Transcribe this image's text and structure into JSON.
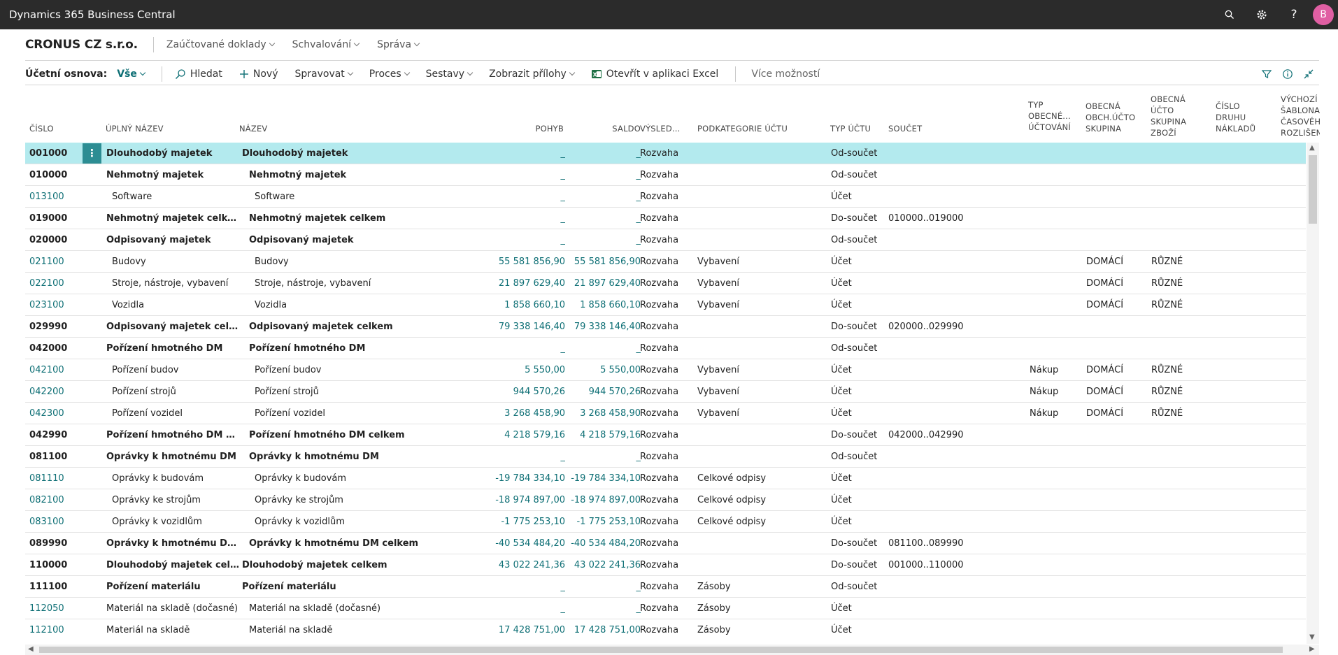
{
  "app": {
    "title": "Dynamics 365 Business Central",
    "avatar_initial": "B"
  },
  "nav": {
    "company": "CRONUS CZ s.r.o.",
    "items": [
      "Zaúčtované doklady",
      "Schvalování",
      "Správa"
    ]
  },
  "actions": {
    "page_caption": "Účetní osnova:",
    "filter_value": "Vše",
    "search": "Hledat",
    "new": "Nový",
    "manage": "Spravovat",
    "process": "Proces",
    "reports": "Sestavy",
    "attachments": "Zobrazit přílohy",
    "excel": "Otevřít v aplikaci Excel",
    "more": "Více možností"
  },
  "columns": {
    "cislo": "Číslo",
    "uplny_nazev": "Úplný název",
    "nazev": "Název",
    "pohyb": "Pohyb",
    "saldo": "Saldo",
    "vysledek": "Výsled...",
    "podkategorie": "Podkategorie účtu",
    "typ_uctu": "Typ účtu",
    "soucet": "Součet",
    "typ_obecne": "Typ obecné... účtování",
    "obecna_obch": "Obecná obch.účto skupina",
    "obecna_zbozi": "Obecná účto skupina zboží",
    "cislo_druhu": "Číslo druhu nákladů",
    "vychozi": "Výchozí šablona časového rozlišení"
  },
  "rows": [
    {
      "no": "001000",
      "full": "Dlouhodobý majetek",
      "name": "Dlouhodobý majetek",
      "pohyb": "_",
      "saldo": "_",
      "vys": "Rozvaha",
      "pod": "",
      "typ": "Od-součet",
      "soucet": "",
      "tob": "",
      "obch": "",
      "zbozi": "",
      "bold": true,
      "indent": 0
    },
    {
      "no": "010000",
      "full": "Nehmotný majetek",
      "name": "Nehmotný majetek",
      "pohyb": "_",
      "saldo": "_",
      "vys": "Rozvaha",
      "pod": "",
      "typ": "Od-součet",
      "soucet": "",
      "tob": "",
      "obch": "",
      "zbozi": "",
      "bold": true,
      "indent": 1
    },
    {
      "no": "013100",
      "full": "Software",
      "name": "Software",
      "pohyb": "_",
      "saldo": "_",
      "vys": "Rozvaha",
      "pod": "",
      "typ": "Účet",
      "soucet": "",
      "tob": "",
      "obch": "",
      "zbozi": "",
      "bold": false,
      "indent": 2
    },
    {
      "no": "019000",
      "full": "Nehmotný majetek celkem",
      "name": "Nehmotný majetek celkem",
      "pohyb": "_",
      "saldo": "_",
      "vys": "Rozvaha",
      "pod": "",
      "typ": "Do-součet",
      "soucet": "010000..019000",
      "tob": "",
      "obch": "",
      "zbozi": "",
      "bold": true,
      "indent": 1
    },
    {
      "no": "020000",
      "full": "Odpisovaný majetek",
      "name": "Odpisovaný majetek",
      "pohyb": "_",
      "saldo": "_",
      "vys": "Rozvaha",
      "pod": "",
      "typ": "Od-součet",
      "soucet": "",
      "tob": "",
      "obch": "",
      "zbozi": "",
      "bold": true,
      "indent": 1
    },
    {
      "no": "021100",
      "full": "Budovy",
      "name": "Budovy",
      "pohyb": "55 581 856,90",
      "saldo": "55 581 856,90",
      "vys": "Rozvaha",
      "pod": "Vybavení",
      "typ": "Účet",
      "soucet": "",
      "tob": "",
      "obch": "DOMÁCÍ",
      "zbozi": "RŮZNÉ",
      "bold": false,
      "indent": 2
    },
    {
      "no": "022100",
      "full": "Stroje, nástroje, vybavení",
      "name": "Stroje, nástroje, vybavení",
      "pohyb": "21 897 629,40",
      "saldo": "21 897 629,40",
      "vys": "Rozvaha",
      "pod": "Vybavení",
      "typ": "Účet",
      "soucet": "",
      "tob": "",
      "obch": "DOMÁCÍ",
      "zbozi": "RŮZNÉ",
      "bold": false,
      "indent": 2
    },
    {
      "no": "023100",
      "full": "Vozidla",
      "name": "Vozidla",
      "pohyb": "1 858 660,10",
      "saldo": "1 858 660,10",
      "vys": "Rozvaha",
      "pod": "Vybavení",
      "typ": "Účet",
      "soucet": "",
      "tob": "",
      "obch": "DOMÁCÍ",
      "zbozi": "RŮZNÉ",
      "bold": false,
      "indent": 2
    },
    {
      "no": "029990",
      "full": "Odpisovaný majetek celkem",
      "name": "Odpisovaný majetek celkem",
      "pohyb": "79 338 146,40",
      "saldo": "79 338 146,40",
      "vys": "Rozvaha",
      "pod": "",
      "typ": "Do-součet",
      "soucet": "020000..029990",
      "tob": "",
      "obch": "",
      "zbozi": "",
      "bold": true,
      "indent": 1
    },
    {
      "no": "042000",
      "full": "Pořízení hmotného DM",
      "name": "Pořízení hmotného DM",
      "pohyb": "_",
      "saldo": "_",
      "vys": "Rozvaha",
      "pod": "",
      "typ": "Od-součet",
      "soucet": "",
      "tob": "",
      "obch": "",
      "zbozi": "",
      "bold": true,
      "indent": 1
    },
    {
      "no": "042100",
      "full": "Pořízení budov",
      "name": "Pořízení budov",
      "pohyb": "5 550,00",
      "saldo": "5 550,00",
      "vys": "Rozvaha",
      "pod": "Vybavení",
      "typ": "Účet",
      "soucet": "",
      "tob": "Nákup",
      "obch": "DOMÁCÍ",
      "zbozi": "RŮZNÉ",
      "bold": false,
      "indent": 2
    },
    {
      "no": "042200",
      "full": "Pořízení strojů",
      "name": "Pořízení strojů",
      "pohyb": "944 570,26",
      "saldo": "944 570,26",
      "vys": "Rozvaha",
      "pod": "Vybavení",
      "typ": "Účet",
      "soucet": "",
      "tob": "Nákup",
      "obch": "DOMÁCÍ",
      "zbozi": "RŮZNÉ",
      "bold": false,
      "indent": 2
    },
    {
      "no": "042300",
      "full": "Pořízení vozidel",
      "name": "Pořízení vozidel",
      "pohyb": "3 268 458,90",
      "saldo": "3 268 458,90",
      "vys": "Rozvaha",
      "pod": "Vybavení",
      "typ": "Účet",
      "soucet": "",
      "tob": "Nákup",
      "obch": "DOMÁCÍ",
      "zbozi": "RŮZNÉ",
      "bold": false,
      "indent": 2
    },
    {
      "no": "042990",
      "full": "Pořízení hmotného DM celk...",
      "name": "Pořízení hmotného DM celkem",
      "pohyb": "4 218 579,16",
      "saldo": "4 218 579,16",
      "vys": "Rozvaha",
      "pod": "",
      "typ": "Do-součet",
      "soucet": "042000..042990",
      "tob": "",
      "obch": "",
      "zbozi": "",
      "bold": true,
      "indent": 1
    },
    {
      "no": "081100",
      "full": "Oprávky k hmotnému DM",
      "name": "Oprávky k hmotnému DM",
      "pohyb": "_",
      "saldo": "_",
      "vys": "Rozvaha",
      "pod": "",
      "typ": "Od-součet",
      "soucet": "",
      "tob": "",
      "obch": "",
      "zbozi": "",
      "bold": true,
      "indent": 1
    },
    {
      "no": "081110",
      "full": "Oprávky k budovám",
      "name": "Oprávky k budovám",
      "pohyb": "-19 784 334,10",
      "saldo": "-19 784 334,10",
      "vys": "Rozvaha",
      "pod": "Celkové odpisy",
      "typ": "Účet",
      "soucet": "",
      "tob": "",
      "obch": "",
      "zbozi": "",
      "bold": false,
      "indent": 2
    },
    {
      "no": "082100",
      "full": "Oprávky ke strojům",
      "name": "Oprávky ke strojům",
      "pohyb": "-18 974 897,00",
      "saldo": "-18 974 897,00",
      "vys": "Rozvaha",
      "pod": "Celkové odpisy",
      "typ": "Účet",
      "soucet": "",
      "tob": "",
      "obch": "",
      "zbozi": "",
      "bold": false,
      "indent": 2
    },
    {
      "no": "083100",
      "full": "Oprávky k vozidlům",
      "name": "Oprávky k vozidlům",
      "pohyb": "-1 775 253,10",
      "saldo": "-1 775 253,10",
      "vys": "Rozvaha",
      "pod": "Celkové odpisy",
      "typ": "Účet",
      "soucet": "",
      "tob": "",
      "obch": "",
      "zbozi": "",
      "bold": false,
      "indent": 2
    },
    {
      "no": "089990",
      "full": "Oprávky k hmotnému DM c...",
      "name": "Oprávky k hmotnému DM celkem",
      "pohyb": "-40 534 484,20",
      "saldo": "-40 534 484,20",
      "vys": "Rozvaha",
      "pod": "",
      "typ": "Do-součet",
      "soucet": "081100..089990",
      "tob": "",
      "obch": "",
      "zbozi": "",
      "bold": true,
      "indent": 1
    },
    {
      "no": "110000",
      "full": "Dlouhodobý majetek celkem",
      "name": "Dlouhodobý majetek celkem",
      "pohyb": "43 022 241,36",
      "saldo": "43 022 241,36",
      "vys": "Rozvaha",
      "pod": "",
      "typ": "Do-součet",
      "soucet": "001000..110000",
      "tob": "",
      "obch": "",
      "zbozi": "",
      "bold": true,
      "indent": 0
    },
    {
      "no": "111100",
      "full": "Pořízení materiálu",
      "name": "Pořízení materiálu",
      "pohyb": "_",
      "saldo": "_",
      "vys": "Rozvaha",
      "pod": "Zásoby",
      "typ": "Od-součet",
      "soucet": "",
      "tob": "",
      "obch": "",
      "zbozi": "",
      "bold": true,
      "indent": 0
    },
    {
      "no": "112050",
      "full": "Materiál na skladě (dočasné)",
      "name": "Materiál na skladě (dočasné)",
      "pohyb": "_",
      "saldo": "_",
      "vys": "Rozvaha",
      "pod": "Zásoby",
      "typ": "Účet",
      "soucet": "",
      "tob": "",
      "obch": "",
      "zbozi": "",
      "bold": false,
      "indent": 1
    },
    {
      "no": "112100",
      "full": "Materiál na skladě",
      "name": "Materiál na skladě",
      "pohyb": "17 428 751,00",
      "saldo": "17 428 751,00",
      "vys": "Rozvaha",
      "pod": "Zásoby",
      "typ": "Účet",
      "soucet": "",
      "tob": "",
      "obch": "",
      "zbozi": "",
      "bold": false,
      "indent": 1
    }
  ]
}
